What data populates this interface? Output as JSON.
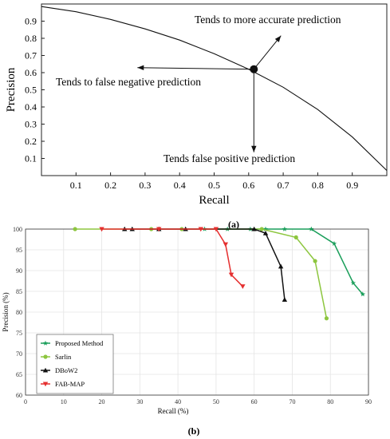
{
  "chart_data": [
    {
      "type": "line",
      "caption": "(a)",
      "xlabel": "Recall",
      "ylabel": "Precision",
      "xlim": [
        0,
        1
      ],
      "ylim": [
        0,
        1
      ],
      "xticks": [
        "0.1",
        "0.2",
        "0.3",
        "0.4",
        "0.5",
        "0.6",
        "0.7",
        "0.8",
        "0.9"
      ],
      "yticks": [
        "0.1",
        "0.2",
        "0.3",
        "0.4",
        "0.5",
        "0.6",
        "0.7",
        "0.8",
        "0.9"
      ],
      "series": [
        {
          "x": [
            0.0,
            0.1,
            0.2,
            0.3,
            0.4,
            0.5,
            0.6,
            0.7,
            0.8,
            0.9,
            1.0
          ],
          "y": [
            0.985,
            0.955,
            0.91,
            0.855,
            0.79,
            0.71,
            0.62,
            0.515,
            0.385,
            0.225,
            0.03
          ]
        }
      ],
      "point": {
        "x": 0.615,
        "y": 0.62
      },
      "annotations": [
        {
          "text": "Tends to more accurate prediction",
          "direction": "up-right"
        },
        {
          "text": "Tends to false negative prediction",
          "direction": "left"
        },
        {
          "text": "Tends false positive prediction",
          "direction": "down"
        }
      ],
      "grid": false
    },
    {
      "type": "line",
      "caption": "(b)",
      "xlabel": "Recall (%)",
      "ylabel": "Precision (%)",
      "xlim": [
        0,
        90
      ],
      "ylim": [
        60,
        100
      ],
      "xticks": [
        "0",
        "10",
        "20",
        "30",
        "40",
        "50",
        "60",
        "70",
        "80",
        "90"
      ],
      "yticks": [
        "60",
        "65",
        "70",
        "75",
        "80",
        "85",
        "90",
        "95",
        "100"
      ],
      "grid": true,
      "legend_position": "bottom-left",
      "series": [
        {
          "name": "Proposed Method",
          "color": "#1a9e5a",
          "marker": "star",
          "x": [
            47,
            53,
            59,
            63,
            68,
            75,
            81,
            86,
            88.5
          ],
          "y": [
            100,
            100,
            100,
            100,
            100,
            100,
            96.5,
            87,
            84.3
          ]
        },
        {
          "name": "Sarlin",
          "color": "#8dc63f",
          "marker": "circle",
          "x": [
            13,
            33,
            41,
            62,
            71,
            76,
            79
          ],
          "y": [
            100,
            100,
            100,
            100,
            98,
            92.3,
            78.5
          ]
        },
        {
          "name": "DBoW2",
          "color": "#111111",
          "marker": "triangle-up",
          "x": [
            26,
            28,
            35,
            42,
            60,
            63,
            67,
            68
          ],
          "y": [
            100,
            100,
            100,
            100,
            100,
            99,
            91,
            83
          ]
        },
        {
          "name": "FAB-MAP",
          "color": "#e53030",
          "marker": "triangle-down",
          "x": [
            20,
            35,
            46,
            50,
            52.5,
            54,
            57
          ],
          "y": [
            100,
            100,
            100,
            100,
            96.3,
            89,
            86.2
          ]
        }
      ]
    }
  ]
}
